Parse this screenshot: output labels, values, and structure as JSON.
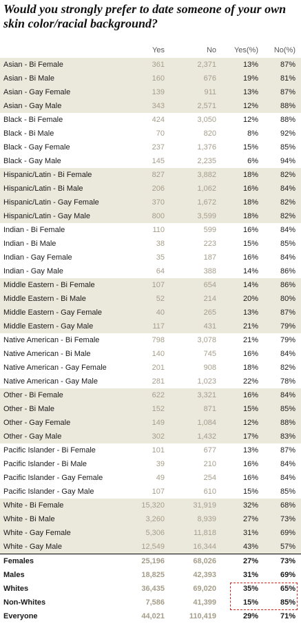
{
  "header": {
    "title": "Would you strongly prefer to date someone of your own skin color/racial background?",
    "columns": [
      "Yes",
      "No",
      "Yes(%)",
      "No(%)"
    ]
  },
  "table": {
    "rows": [
      [
        "Asian - Bi Female",
        "361",
        "2,371",
        "13%",
        "87%"
      ],
      [
        "Asian - Bi Male",
        "160",
        "676",
        "19%",
        "81%"
      ],
      [
        "Asian - Gay Female",
        "139",
        "911",
        "13%",
        "87%"
      ],
      [
        "Asian - Gay Male",
        "343",
        "2,571",
        "12%",
        "88%"
      ],
      [
        "Black - Bi Female",
        "424",
        "3,050",
        "12%",
        "88%"
      ],
      [
        "Black - Bi Male",
        "70",
        "820",
        "8%",
        "92%"
      ],
      [
        "Black - Gay Female",
        "237",
        "1,376",
        "15%",
        "85%"
      ],
      [
        "Black - Gay Male",
        "145",
        "2,235",
        "6%",
        "94%"
      ],
      [
        "Hispanic/Latin - Bi Female",
        "827",
        "3,882",
        "18%",
        "82%"
      ],
      [
        "Hispanic/Latin - Bi Male",
        "206",
        "1,062",
        "16%",
        "84%"
      ],
      [
        "Hispanic/Latin - Gay Female",
        "370",
        "1,672",
        "18%",
        "82%"
      ],
      [
        "Hispanic/Latin - Gay Male",
        "800",
        "3,599",
        "18%",
        "82%"
      ],
      [
        "Indian - Bi Female",
        "110",
        "599",
        "16%",
        "84%"
      ],
      [
        "Indian - Bi Male",
        "38",
        "223",
        "15%",
        "85%"
      ],
      [
        "Indian - Gay Female",
        "35",
        "187",
        "16%",
        "84%"
      ],
      [
        "Indian - Gay Male",
        "64",
        "388",
        "14%",
        "86%"
      ],
      [
        "Middle Eastern - Bi Female",
        "107",
        "654",
        "14%",
        "86%"
      ],
      [
        "Middle Eastern - Bi Male",
        "52",
        "214",
        "20%",
        "80%"
      ],
      [
        "Middle Eastern - Gay Female",
        "40",
        "265",
        "13%",
        "87%"
      ],
      [
        "Middle Eastern - Gay Male",
        "117",
        "431",
        "21%",
        "79%"
      ],
      [
        "Native American - Bi Female",
        "798",
        "3,078",
        "21%",
        "79%"
      ],
      [
        "Native American - Bi Male",
        "140",
        "745",
        "16%",
        "84%"
      ],
      [
        "Native American - Gay Female",
        "201",
        "908",
        "18%",
        "82%"
      ],
      [
        "Native American - Gay Male",
        "281",
        "1,023",
        "22%",
        "78%"
      ],
      [
        "Other - Bi Female",
        "622",
        "3,321",
        "16%",
        "84%"
      ],
      [
        "Other - Bi Male",
        "152",
        "871",
        "15%",
        "85%"
      ],
      [
        "Other - Gay Female",
        "149",
        "1,084",
        "12%",
        "88%"
      ],
      [
        "Other - Gay Male",
        "302",
        "1,432",
        "17%",
        "83%"
      ],
      [
        "Pacific Islander - Bi Female",
        "101",
        "677",
        "13%",
        "87%"
      ],
      [
        "Pacific Islander - Bi Male",
        "39",
        "210",
        "16%",
        "84%"
      ],
      [
        "Pacific Islander - Gay Female",
        "49",
        "254",
        "16%",
        "84%"
      ],
      [
        "Pacific Islander - Gay Male",
        "107",
        "610",
        "15%",
        "85%"
      ],
      [
        "White - Bi Female",
        "15,320",
        "31,919",
        "32%",
        "68%"
      ],
      [
        "White - Bi Male",
        "3,260",
        "8,939",
        "27%",
        "73%"
      ],
      [
        "White - Gay Female",
        "5,306",
        "11,818",
        "31%",
        "69%"
      ],
      [
        "White - Gay Male",
        "12,549",
        "16,344",
        "43%",
        "57%"
      ]
    ]
  },
  "summary": {
    "rows": [
      [
        "Females",
        "25,196",
        "68,026",
        "27%",
        "73%"
      ],
      [
        "Males",
        "18,825",
        "42,393",
        "31%",
        "69%"
      ],
      [
        "Whites",
        "36,435",
        "69,020",
        "35%",
        "65%"
      ],
      [
        "Non-Whites",
        "7,586",
        "41,399",
        "15%",
        "85%"
      ],
      [
        "Everyone",
        "44,021",
        "110,419",
        "29%",
        "71%"
      ]
    ]
  }
}
